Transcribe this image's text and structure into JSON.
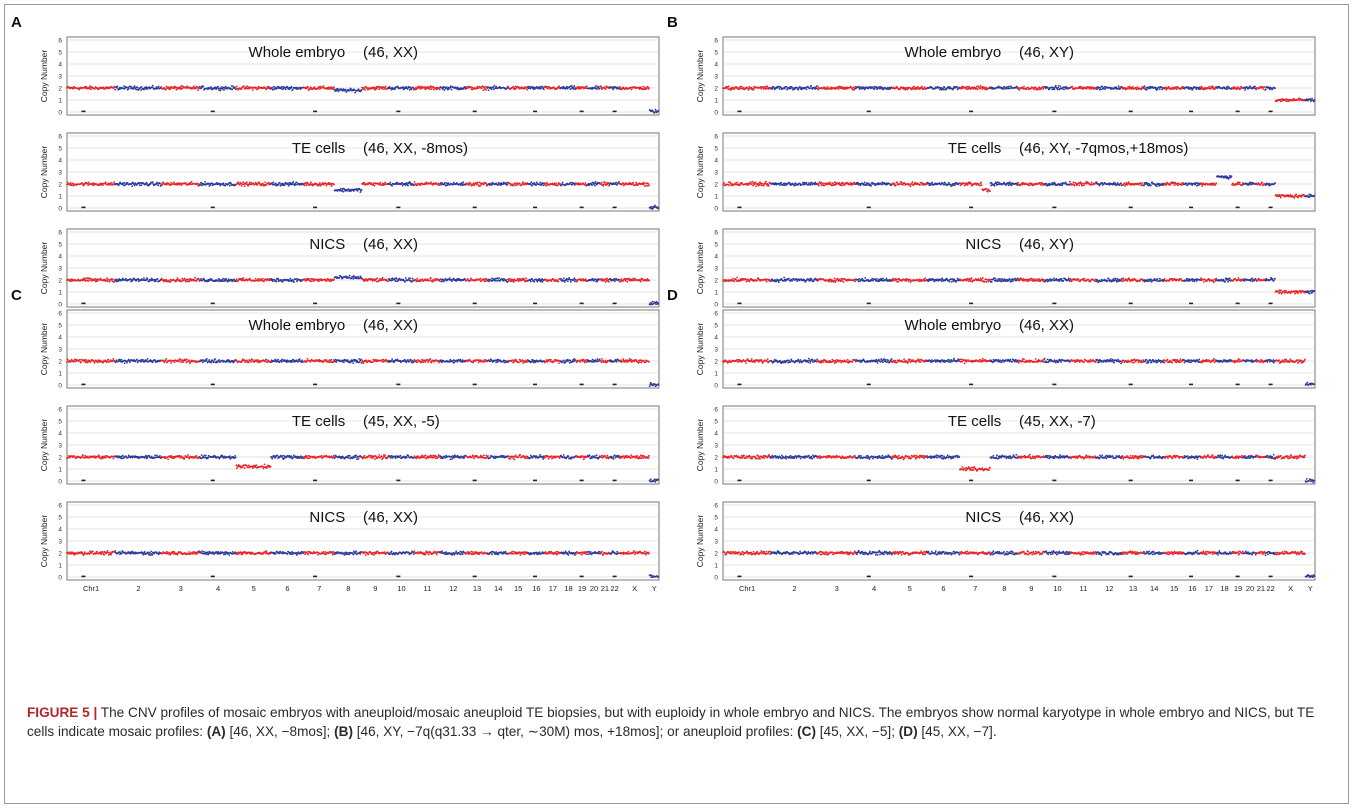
{
  "panels": [
    {
      "letter": "A",
      "chart_data": {
        "type": "scatter",
        "ylabel": "Copy Number",
        "ylim": [
          0,
          6
        ],
        "yticks": [
          "0",
          "1",
          "2",
          "3",
          "4",
          "5",
          "6"
        ],
        "xticks": [
          "Chr1",
          "2",
          "3",
          "4",
          "5",
          "6",
          "7",
          "8",
          "9",
          "10",
          "11",
          "12",
          "13",
          "14",
          "15",
          "16",
          "17",
          "18",
          "19",
          "20",
          "21",
          "22",
          "X",
          "Y"
        ],
        "tracks": [
          {
            "label": "Whole embryo",
            "karyotype": "(46, XX)",
            "sex": "XX",
            "segments": [
              {
                "chr": "8",
                "value": 1.8
              }
            ]
          },
          {
            "label": "TE cells",
            "karyotype": "(46, XX, -8mos)",
            "sex": "XX",
            "segments": [
              {
                "chr": "8",
                "value": 1.5
              }
            ]
          },
          {
            "label": "NICS",
            "karyotype": "(46, XX)",
            "sex": "XX",
            "segments": [
              {
                "chr": "8",
                "value": 2.2
              }
            ]
          }
        ]
      }
    },
    {
      "letter": "B",
      "chart_data": {
        "type": "scatter",
        "ylabel": "Copy Number",
        "ylim": [
          0,
          6
        ],
        "yticks": [
          "0",
          "1",
          "2",
          "3",
          "4",
          "5",
          "6"
        ],
        "xticks": [
          "Chr1",
          "2",
          "3",
          "4",
          "5",
          "6",
          "7",
          "8",
          "9",
          "10",
          "11",
          "12",
          "13",
          "14",
          "15",
          "16",
          "17",
          "18",
          "19",
          "20",
          "21",
          "22",
          "X",
          "Y"
        ],
        "tracks": [
          {
            "label": "Whole embryo",
            "karyotype": "(46, XY)",
            "sex": "XY",
            "segments": []
          },
          {
            "label": "TE cells",
            "karyotype": "(46, XY, -7qmos,+18mos)",
            "sex": "XY",
            "segments": [
              {
                "chr": "7q",
                "value": 1.5
              },
              {
                "chr": "18",
                "value": 2.6
              }
            ]
          },
          {
            "label": "NICS",
            "karyotype": "(46, XY)",
            "sex": "XY",
            "segments": []
          }
        ]
      }
    },
    {
      "letter": "C",
      "chart_data": {
        "type": "scatter",
        "ylabel": "Copy Number",
        "ylim": [
          0,
          6
        ],
        "yticks": [
          "0",
          "1",
          "2",
          "3",
          "4",
          "5",
          "6"
        ],
        "xticks": [
          "Chr1",
          "2",
          "3",
          "4",
          "5",
          "6",
          "7",
          "8",
          "9",
          "10",
          "11",
          "12",
          "13",
          "14",
          "15",
          "16",
          "17",
          "18",
          "19",
          "20",
          "21",
          "22",
          "X",
          "Y"
        ],
        "tracks": [
          {
            "label": "Whole embryo",
            "karyotype": "(46, XX)",
            "sex": "XX",
            "segments": []
          },
          {
            "label": "TE cells",
            "karyotype": "(45, XX, -5)",
            "sex": "XX",
            "segments": [
              {
                "chr": "5",
                "value": 1.2
              }
            ]
          },
          {
            "label": "NICS",
            "karyotype": "(46, XX)",
            "sex": "XX",
            "segments": []
          }
        ]
      }
    },
    {
      "letter": "D",
      "chart_data": {
        "type": "scatter",
        "ylabel": "Copy Number",
        "ylim": [
          0,
          6
        ],
        "yticks": [
          "0",
          "1",
          "2",
          "3",
          "4",
          "5",
          "6"
        ],
        "xticks": [
          "Chr1",
          "2",
          "3",
          "4",
          "5",
          "6",
          "7",
          "8",
          "9",
          "10",
          "11",
          "12",
          "13",
          "14",
          "15",
          "16",
          "17",
          "18",
          "19",
          "20",
          "21",
          "22",
          "X",
          "Y"
        ],
        "tracks": [
          {
            "label": "Whole embryo",
            "karyotype": "(46, XX)",
            "sex": "XX",
            "segments": []
          },
          {
            "label": "TE cells",
            "karyotype": "(45, XX, -7)",
            "sex": "XX",
            "segments": [
              {
                "chr": "7",
                "value": 1.0
              }
            ]
          },
          {
            "label": "NICS",
            "karyotype": "(46, XX)",
            "sex": "XX",
            "segments": []
          }
        ]
      }
    }
  ],
  "colors": {
    "odd_chromosome": "#e8262a",
    "even_chromosome": "#2c3b9c",
    "grid": "#c8c8c8",
    "caption_lead": "#b3262a"
  },
  "caption": {
    "lead": "FIGURE 5 |",
    "text": " The CNV profiles of mosaic embryos with aneuploid/mosaic aneuploid TE biopsies, but with euploidy in whole embryo and NICS. The embryos show normal karyotype in whole embryo and NICS, but TE cells indicate mosaic profiles: ",
    "a_label": "(A)",
    "a_text": " [46, XX, −8mos]; ",
    "b_label": "(B)",
    "b_text": " [46, XY, −7q(q31.33 → qter, ∼30M) mos, +18mos]; or aneuploid profiles: ",
    "c_label": "(C)",
    "c_text": " [45, XX, −5]; ",
    "d_label": "(D)",
    "d_text": " [45, XX, −7]."
  }
}
